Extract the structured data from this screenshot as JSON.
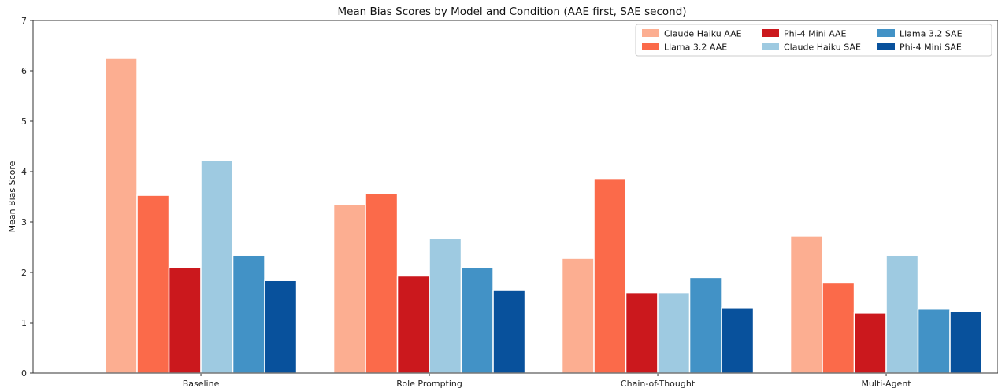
{
  "chart_data": {
    "type": "bar",
    "title": "Mean Bias Scores by Model and Condition (AAE first, SAE second)",
    "xlabel": "",
    "ylabel": "Mean Bias Score",
    "ylim": [
      0,
      7
    ],
    "yticks": [
      "0",
      "1",
      "2",
      "3",
      "4",
      "5",
      "6",
      "7"
    ],
    "categories": [
      "Baseline",
      "Role Prompting",
      "Chain-of-Thought",
      "Multi-Agent"
    ],
    "grid": false,
    "legend_position": "top-right",
    "series": [
      {
        "name": "Claude Haiku AAE",
        "color": "#fcae91",
        "values": [
          6.25,
          3.35,
          2.28,
          2.72
        ]
      },
      {
        "name": "Llama 3.2 AAE",
        "color": "#fb6a4a",
        "values": [
          3.53,
          3.56,
          3.85,
          1.79
        ]
      },
      {
        "name": "Phi-4 Mini AAE",
        "color": "#cb181d",
        "values": [
          2.09,
          1.93,
          1.6,
          1.19
        ]
      },
      {
        "name": "Claude Haiku SAE",
        "color": "#9ecae1",
        "values": [
          4.22,
          2.68,
          1.6,
          2.34
        ]
      },
      {
        "name": "Llama 3.2 SAE",
        "color": "#4292c6",
        "values": [
          2.34,
          2.09,
          1.9,
          1.27
        ]
      },
      {
        "name": "Phi-4 Mini SAE",
        "color": "#08519c",
        "values": [
          1.84,
          1.64,
          1.3,
          1.23
        ]
      }
    ]
  }
}
